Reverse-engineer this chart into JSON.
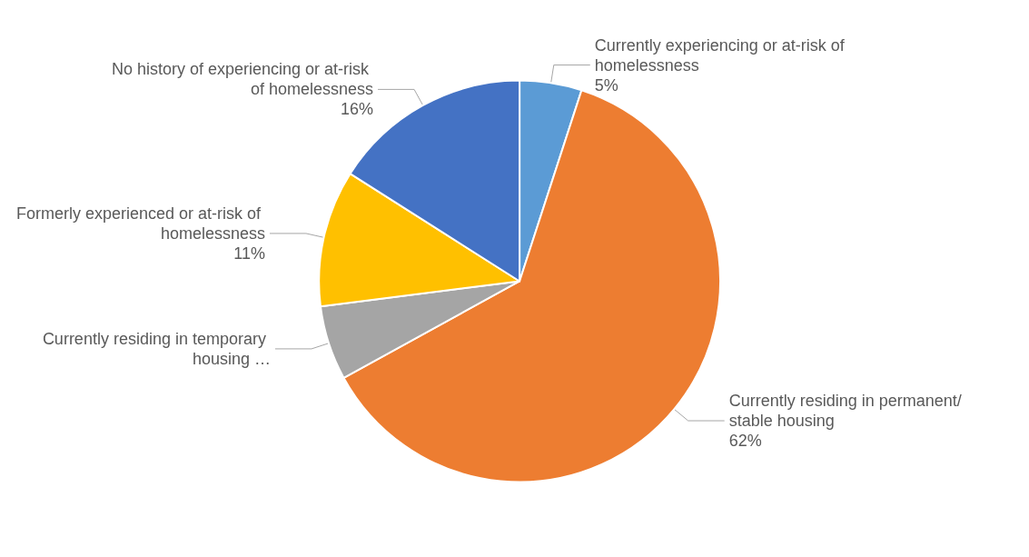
{
  "chart_data": {
    "type": "pie",
    "categories": [
      "Currently experiencing or at-risk of homelessness",
      "Currently residing in permanent/stable housing",
      "Currently residing in temporary housing …",
      "Formerly experienced or at-risk of homelessness",
      "No history of experiencing or at-risk of homelessness"
    ],
    "values": [
      5,
      62,
      6,
      11,
      16
    ],
    "colors": [
      "#5b9bd5",
      "#ed7d31",
      "#a5a5a5",
      "#ffc000",
      "#4472c4"
    ],
    "value_labels": [
      "5%",
      "62%",
      null,
      "11%",
      "16%"
    ],
    "legend": false
  }
}
